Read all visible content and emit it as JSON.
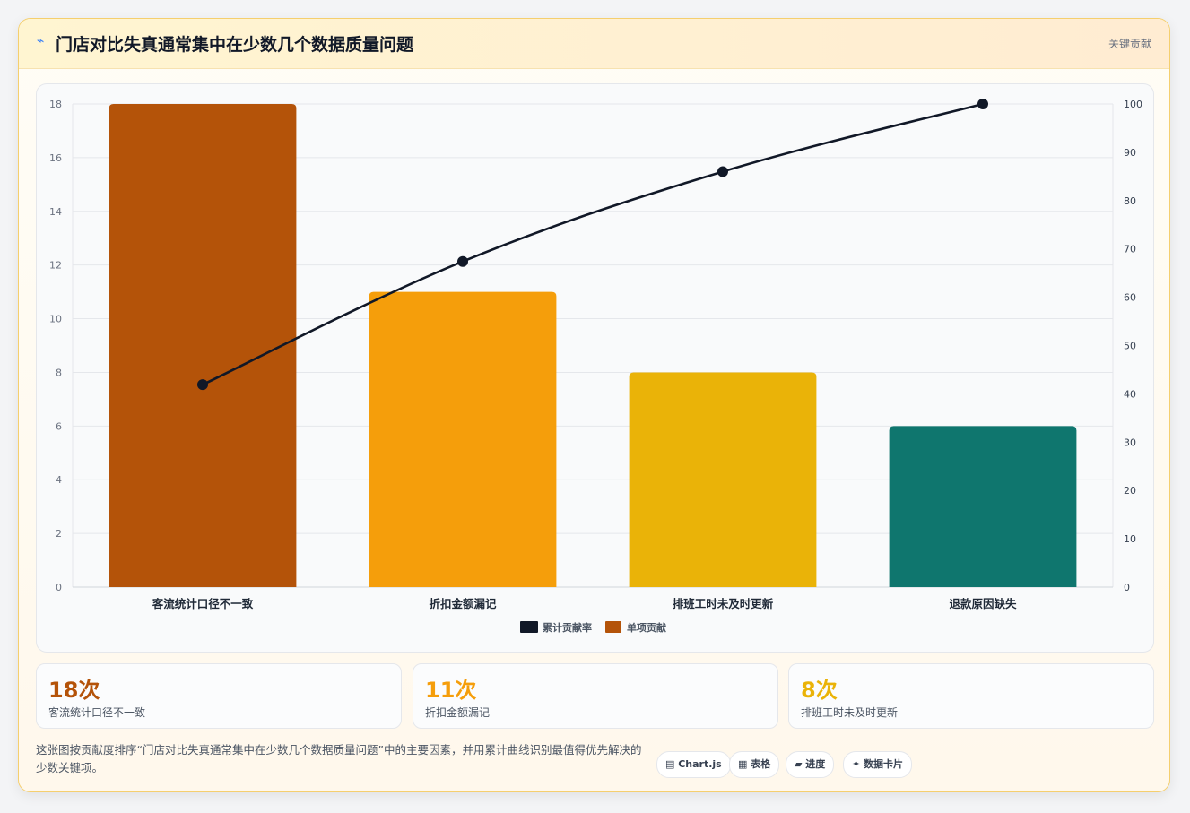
{
  "header": {
    "icon": "lightning-icon",
    "icon_glyph": "⌁",
    "title": "门店对比失真通常集中在少数几个数据质量问题",
    "tag": "关键贡献"
  },
  "chart_data": {
    "type": "bar",
    "title": "",
    "xlabel": "",
    "ylabel": "",
    "categories": [
      "客流统计口径不一致",
      "折扣金额漏记",
      "排班工时未及时更新",
      "退款原因缺失"
    ],
    "series": [
      {
        "name": "单项贡献",
        "type": "bar",
        "axis": "left",
        "values": [
          18,
          11,
          8,
          6
        ],
        "colors": [
          "#b45309",
          "#f59e0b",
          "#eab308",
          "#0f766e"
        ]
      },
      {
        "name": "累计贡献率",
        "type": "line",
        "axis": "right",
        "values": [
          41.9,
          67.4,
          86.0,
          100
        ],
        "color": "#111827"
      }
    ],
    "ylim": [
      0,
      18
    ],
    "y_ticks": [
      "0",
      "2",
      "4",
      "6",
      "8",
      "10",
      "12",
      "14",
      "16",
      "18"
    ],
    "y2lim": [
      0,
      100
    ],
    "y2_ticks": [
      "0",
      "10",
      "20",
      "30",
      "40",
      "50",
      "60",
      "70",
      "80",
      "90",
      "100"
    ],
    "grid": true,
    "legend": [
      "累计贡献率",
      "单项贡献"
    ],
    "legend_position": "bottom"
  },
  "stats": [
    {
      "value": "18次",
      "label": "客流统计口径不一致",
      "color": "#b45309"
    },
    {
      "value": "11次",
      "label": "折扣金额漏记",
      "color": "#f59e0b"
    },
    {
      "value": "8次",
      "label": "排班工时未及时更新",
      "color": "#eab308"
    }
  ],
  "note": "这张图按贡献度排序“门店对比失真通常集中在少数几个数据质量问题”中的主要因素，并用累计曲线识别最值得优先解决的少数关键项。",
  "chips": [
    {
      "icon": "chart-icon",
      "label": "▤ Chart.js"
    },
    {
      "icon": "table-icon",
      "label": "▦ 表格"
    },
    {
      "icon": "progress-icon",
      "label": "▰ 进度"
    },
    {
      "icon": "card-icon",
      "label": "✦ 数据卡片"
    }
  ]
}
